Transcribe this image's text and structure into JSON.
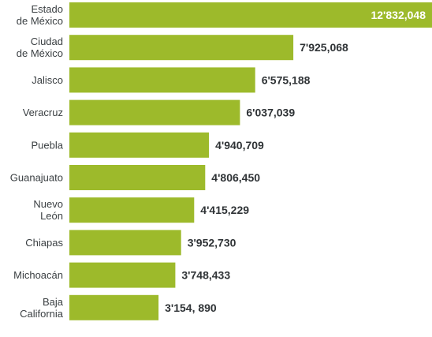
{
  "chart_data": {
    "type": "bar",
    "orientation": "horizontal",
    "categories": [
      [
        "Estado",
        "de México"
      ],
      [
        "Ciudad",
        "de México"
      ],
      [
        "Jalisco"
      ],
      [
        "Veracruz"
      ],
      [
        "Puebla"
      ],
      [
        "Guanajuato"
      ],
      [
        "Nuevo",
        "León"
      ],
      [
        "Chiapas"
      ],
      [
        "Michoacán"
      ],
      [
        "Baja",
        "California"
      ]
    ],
    "values": [
      12832048,
      7925068,
      6575188,
      6037039,
      4940709,
      4806450,
      4415229,
      3952730,
      3748433,
      3154890
    ],
    "value_labels": [
      "12'832,048",
      "7'925,068",
      "6'575,188",
      "6'037,039",
      "4'940,709",
      "4'806,450",
      "4'415,229",
      "3'952,730",
      "3'748,433",
      "3'154, 890"
    ],
    "title": "",
    "xlabel": "",
    "ylabel": "",
    "grid": false,
    "legend": "none",
    "colors": {
      "bar": "#9dba2b",
      "category_text": "#3a3f42",
      "value_text": "#2f3336",
      "inside_value_text": "#ffffff"
    }
  }
}
